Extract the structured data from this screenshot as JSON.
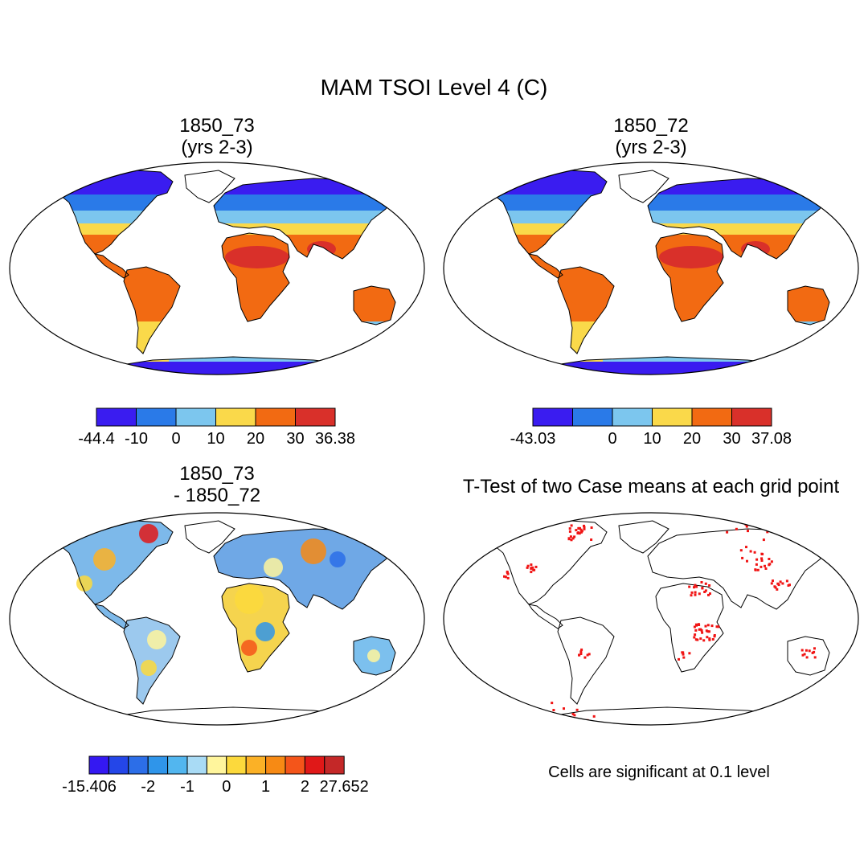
{
  "figure": {
    "title": "MAM TSOI Level 4 (C)",
    "note": "Cells are significant at 0.1 level"
  },
  "panels": {
    "a": {
      "title_line1": "1850_73",
      "title_line2": "(yrs 2-3)"
    },
    "b": {
      "title_line1": "1850_72",
      "title_line2": "(yrs 2-3)"
    },
    "c": {
      "title_line1": "1850_73",
      "title_line2": "- 1850_72"
    },
    "d": {
      "title": "T-Test of two Case means at each grid point"
    }
  },
  "colorbars": {
    "a": {
      "colors": [
        "#3a1cf0",
        "#2a7ae8",
        "#7cc6ee",
        "#fad94a",
        "#f26a12",
        "#d9302a"
      ],
      "labels": [
        "-44.4",
        "-10",
        "0",
        "10",
        "20",
        "30",
        "36.38"
      ]
    },
    "b": {
      "colors": [
        "#3a1cf0",
        "#2a7ae8",
        "#7cc6ee",
        "#fad94a",
        "#f26a12",
        "#d9302a"
      ],
      "labels": [
        "-43.03",
        "",
        "0",
        "10",
        "20",
        "30",
        "37.08"
      ]
    },
    "c": {
      "colors": [
        "#3418f2",
        "#2446e8",
        "#2c6ee8",
        "#2f95ea",
        "#52b6ef",
        "#a9dbf5",
        "#fff59c",
        "#fcd93c",
        "#fbb126",
        "#f78a14",
        "#f4551a",
        "#e01818",
        "#c42828"
      ],
      "labels": [
        "-15.406",
        "-2",
        "-1",
        "0",
        "1",
        "2",
        "27.652"
      ],
      "label_boundaries": [
        0,
        3,
        5,
        7,
        9,
        11,
        13
      ]
    }
  },
  "map_colors": {
    "ocean": "#ffffff",
    "coast": "#000000",
    "significant": "#f01414",
    "panel_c_regions": {
      "north_america": "#7db9ea",
      "south_america": "#9cc9ee",
      "europe_asia": "#6fa8e6",
      "africa": "#f5d44e",
      "australia": "#7cc0ee",
      "greenland": "#ffffff"
    }
  }
}
